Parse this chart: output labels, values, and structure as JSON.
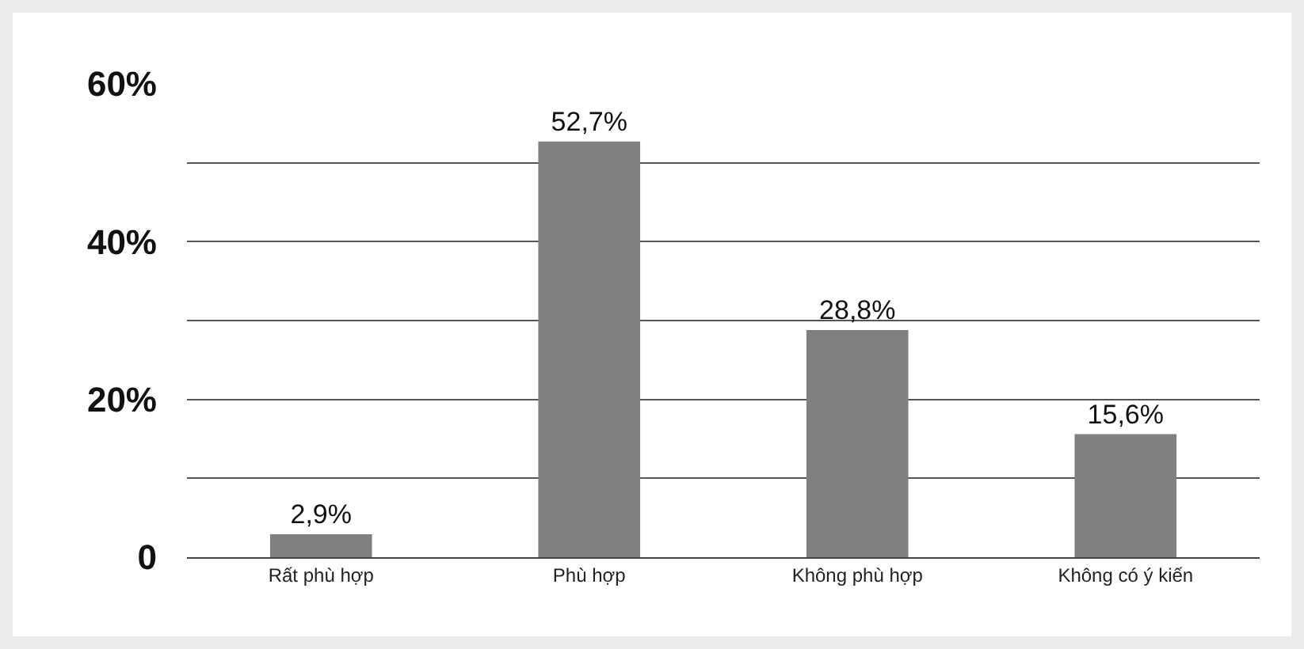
{
  "chart_data": {
    "type": "bar",
    "categories": [
      "Rất phù hợp",
      "Phù hợp",
      "Không phù hợp",
      "Không có ý kiến"
    ],
    "values": [
      2.9,
      52.7,
      28.8,
      15.6
    ],
    "color": "#808080",
    "value_labels": [
      "2,9%",
      "52,7%",
      "28,8%",
      "15,6%"
    ],
    "ylim": [
      0,
      60
    ],
    "yticks": [
      {
        "value": 0,
        "label": "0"
      },
      {
        "value": 10,
        "label": null
      },
      {
        "value": 20,
        "label": "20%"
      },
      {
        "value": 30,
        "label": null
      },
      {
        "value": 40,
        "label": "40%"
      },
      {
        "value": 50,
        "label": null
      },
      {
        "value": 60,
        "label": "60%"
      }
    ],
    "grid": "y",
    "legend": false
  }
}
